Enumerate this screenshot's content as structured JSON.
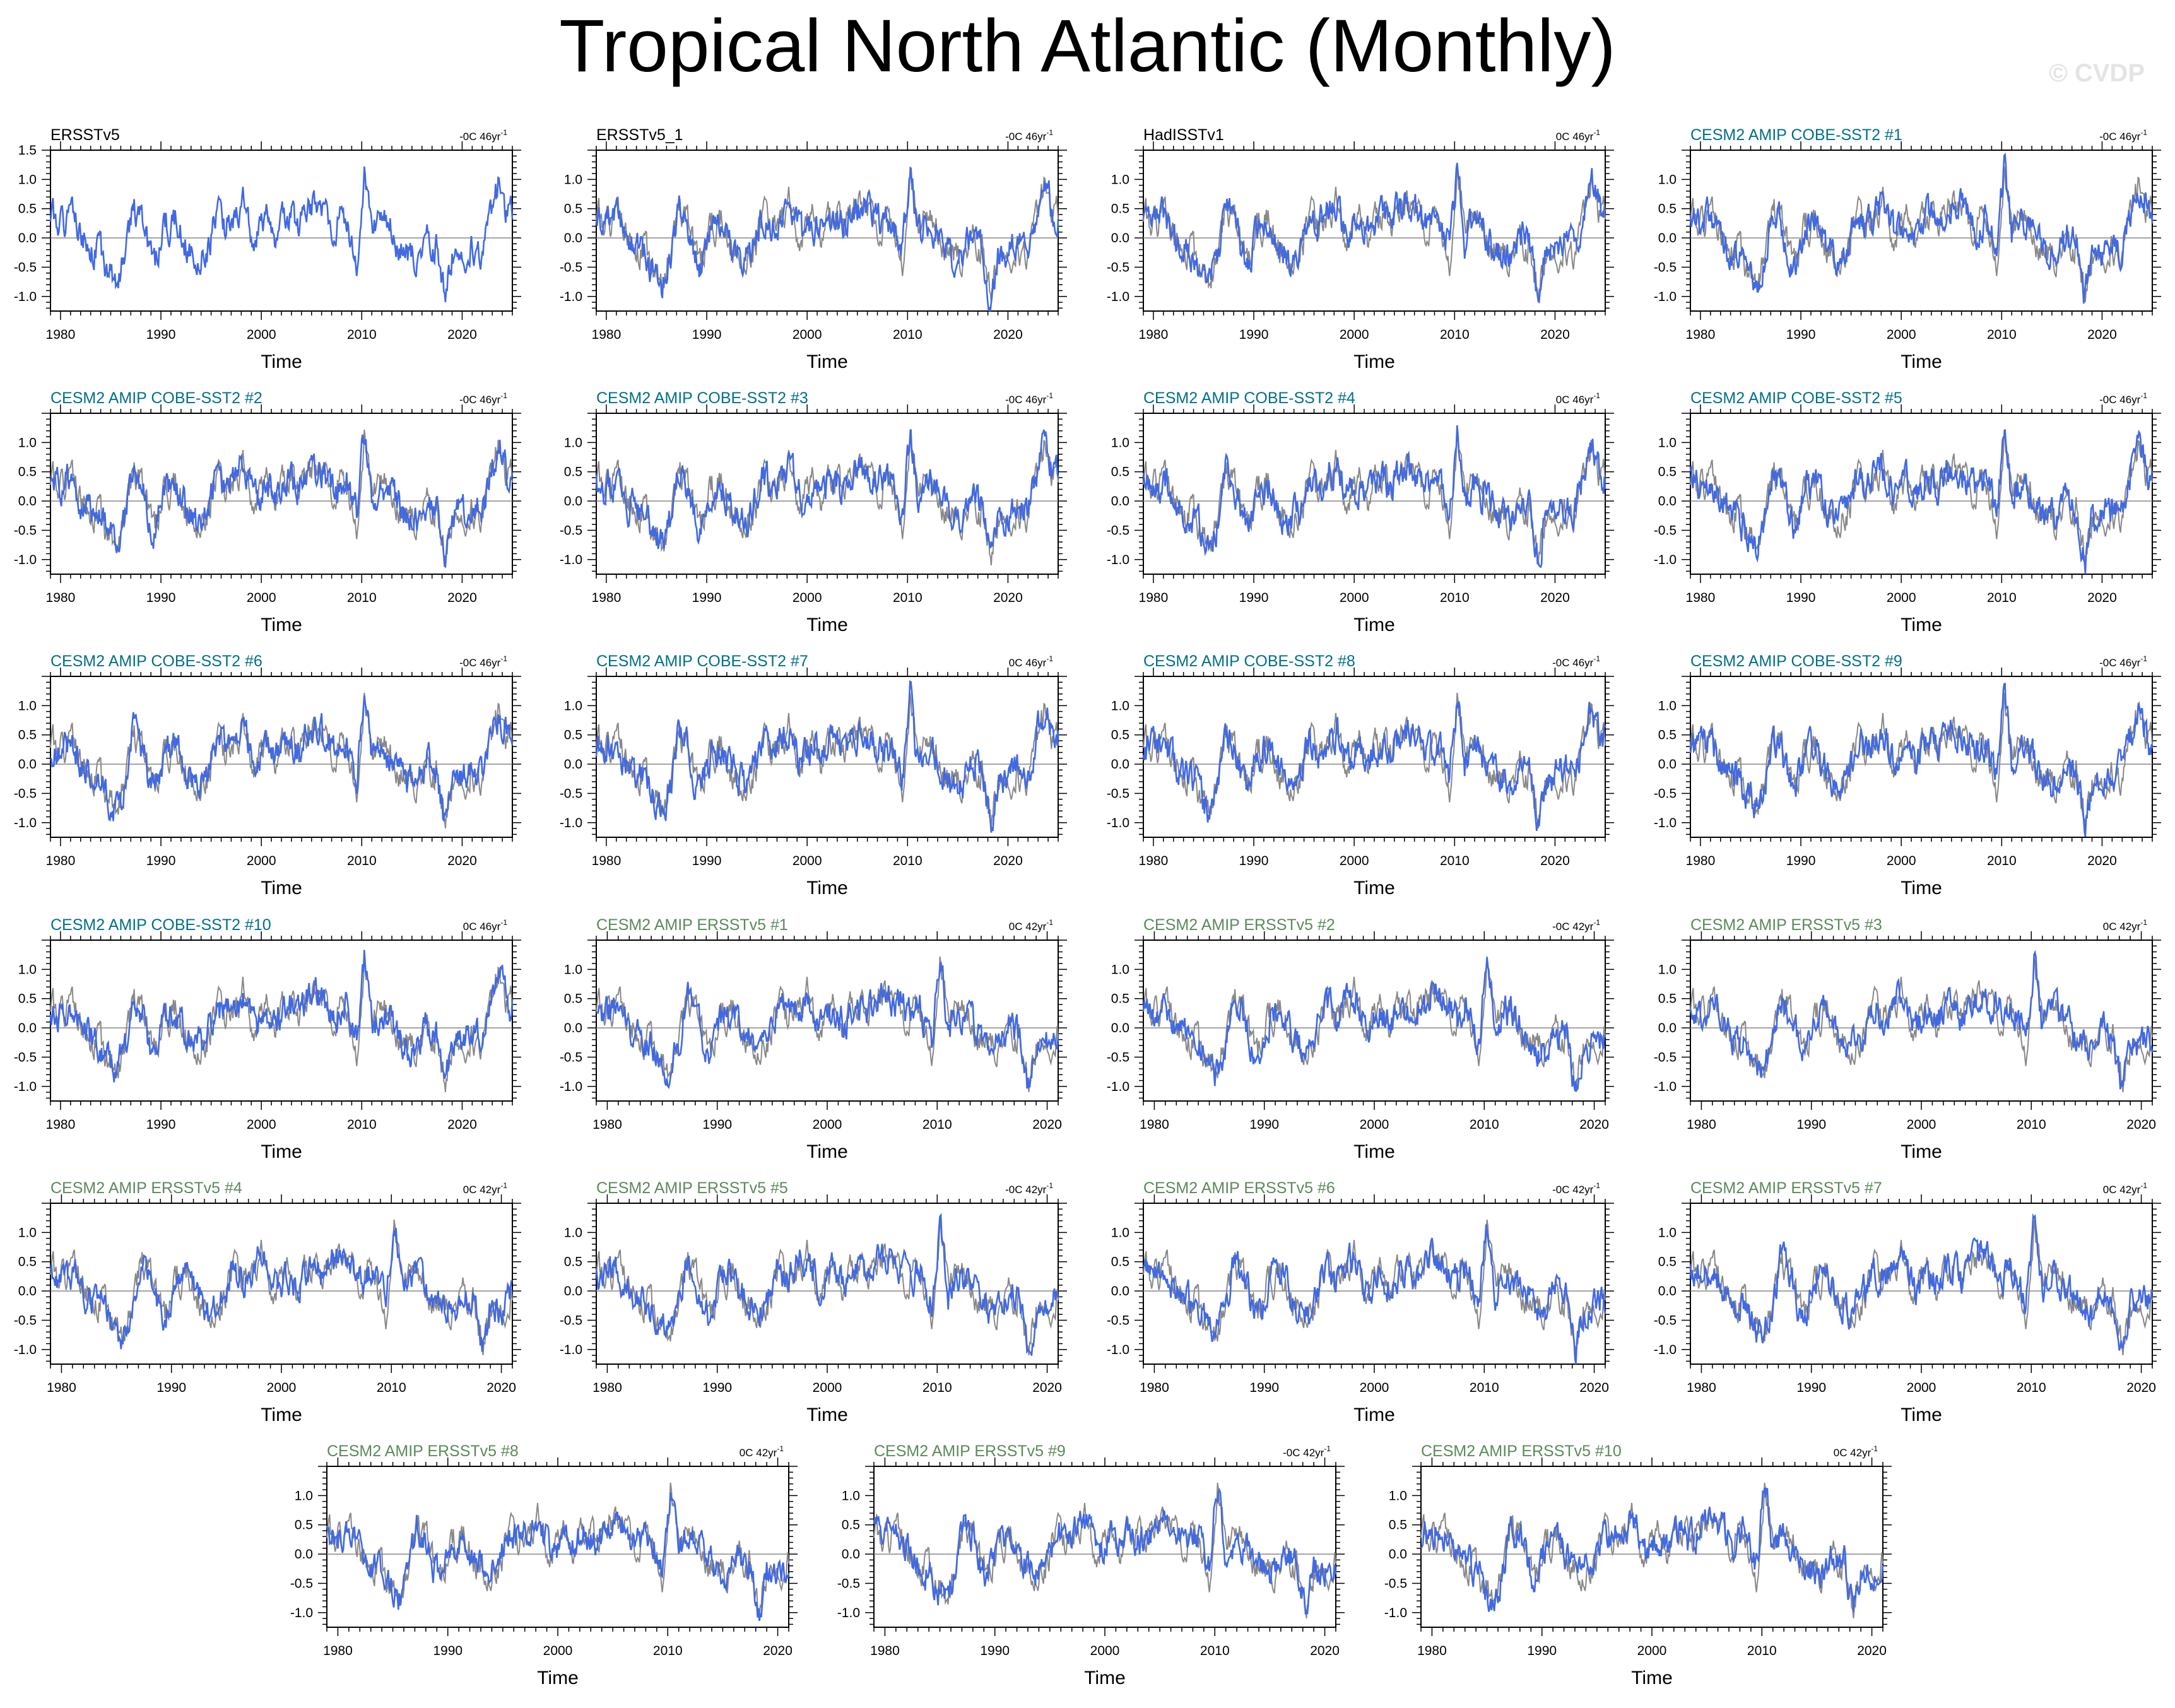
{
  "title": "Tropical North Atlantic (Monthly)",
  "watermark": "© CVDP",
  "colors": {
    "model_line": "#4169e1",
    "observation_line": "#888888",
    "zero_line": "#888888",
    "obs_title": "#000000",
    "cobe_title": "#00708a",
    "ersst_title": "#5b8a5b"
  },
  "chart_data": {
    "type": "line",
    "xlabel": "Time",
    "ylabel": "",
    "ylim": [
      -1.25,
      1.5
    ],
    "yticks": [
      "1.5",
      "1.0",
      "0.5",
      "0.0",
      "-0.5",
      "-1.0"
    ],
    "grid": false,
    "panels": [
      {
        "name": "ERSSTv5",
        "stat": "-0C 46yr",
        "stat_sup": "-1",
        "group": "obs",
        "xlim": [
          1979,
          2025
        ],
        "xticks": [
          "1980",
          "1990",
          "2000",
          "2010",
          "2020"
        ],
        "yticks": [
          "1.5",
          "1.0",
          "0.5",
          "0.0",
          "-0.5",
          "-1.0"
        ],
        "seed": 1
      },
      {
        "name": "ERSSTv5_1",
        "stat": "-0C 46yr",
        "stat_sup": "-1",
        "group": "obs",
        "xlim": [
          1979,
          2025
        ],
        "xticks": [
          "1980",
          "1990",
          "2000",
          "2010",
          "2020"
        ],
        "yticks": [
          "1.0",
          "0.5",
          "0.0",
          "-0.5",
          "-1.0"
        ],
        "seed": 2
      },
      {
        "name": "HadISSTv1",
        "stat": "0C 46yr",
        "stat_sup": "-1",
        "group": "obs",
        "xlim": [
          1979,
          2025
        ],
        "xticks": [
          "1980",
          "1990",
          "2000",
          "2010",
          "2020"
        ],
        "yticks": [
          "1.0",
          "0.5",
          "0.0",
          "-0.5",
          "-1.0"
        ],
        "seed": 3
      },
      {
        "name": "CESM2 AMIP COBE-SST2 #1",
        "stat": "-0C 46yr",
        "stat_sup": "-1",
        "group": "cobe",
        "xlim": [
          1979,
          2025
        ],
        "xticks": [
          "1980",
          "1990",
          "2000",
          "2010",
          "2020"
        ],
        "yticks": [
          "1.0",
          "0.5",
          "0.0",
          "-0.5",
          "-1.0"
        ],
        "seed": 4
      },
      {
        "name": "CESM2 AMIP COBE-SST2 #2",
        "stat": "-0C 46yr",
        "stat_sup": "-1",
        "group": "cobe",
        "xlim": [
          1979,
          2025
        ],
        "xticks": [
          "1980",
          "1990",
          "2000",
          "2010",
          "2020"
        ],
        "yticks": [
          "1.0",
          "0.5",
          "0.0",
          "-0.5",
          "-1.0"
        ],
        "seed": 5
      },
      {
        "name": "CESM2 AMIP COBE-SST2 #3",
        "stat": "-0C 46yr",
        "stat_sup": "-1",
        "group": "cobe",
        "xlim": [
          1979,
          2025
        ],
        "xticks": [
          "1980",
          "1990",
          "2000",
          "2010",
          "2020"
        ],
        "yticks": [
          "1.0",
          "0.5",
          "0.0",
          "-0.5",
          "-1.0"
        ],
        "seed": 6
      },
      {
        "name": "CESM2 AMIP COBE-SST2 #4",
        "stat": "0C 46yr",
        "stat_sup": "-1",
        "group": "cobe",
        "xlim": [
          1979,
          2025
        ],
        "xticks": [
          "1980",
          "1990",
          "2000",
          "2010",
          "2020"
        ],
        "yticks": [
          "1.0",
          "0.5",
          "0.0",
          "-0.5",
          "-1.0"
        ],
        "seed": 7
      },
      {
        "name": "CESM2 AMIP COBE-SST2 #5",
        "stat": "-0C 46yr",
        "stat_sup": "-1",
        "group": "cobe",
        "xlim": [
          1979,
          2025
        ],
        "xticks": [
          "1980",
          "1990",
          "2000",
          "2010",
          "2020"
        ],
        "yticks": [
          "1.0",
          "0.5",
          "0.0",
          "-0.5",
          "-1.0"
        ],
        "seed": 8
      },
      {
        "name": "CESM2 AMIP COBE-SST2 #6",
        "stat": "-0C 46yr",
        "stat_sup": "-1",
        "group": "cobe",
        "xlim": [
          1979,
          2025
        ],
        "xticks": [
          "1980",
          "1990",
          "2000",
          "2010",
          "2020"
        ],
        "yticks": [
          "1.0",
          "0.5",
          "0.0",
          "-0.5",
          "-1.0"
        ],
        "seed": 9
      },
      {
        "name": "CESM2 AMIP COBE-SST2 #7",
        "stat": "0C 46yr",
        "stat_sup": "-1",
        "group": "cobe",
        "xlim": [
          1979,
          2025
        ],
        "xticks": [
          "1980",
          "1990",
          "2000",
          "2010",
          "2020"
        ],
        "yticks": [
          "1.0",
          "0.5",
          "0.0",
          "-0.5",
          "-1.0"
        ],
        "seed": 10
      },
      {
        "name": "CESM2 AMIP COBE-SST2 #8",
        "stat": "-0C 46yr",
        "stat_sup": "-1",
        "group": "cobe",
        "xlim": [
          1979,
          2025
        ],
        "xticks": [
          "1980",
          "1990",
          "2000",
          "2010",
          "2020"
        ],
        "yticks": [
          "1.0",
          "0.5",
          "0.0",
          "-0.5",
          "-1.0"
        ],
        "seed": 11
      },
      {
        "name": "CESM2 AMIP COBE-SST2 #9",
        "stat": "-0C 46yr",
        "stat_sup": "-1",
        "group": "cobe",
        "xlim": [
          1979,
          2025
        ],
        "xticks": [
          "1980",
          "1990",
          "2000",
          "2010",
          "2020"
        ],
        "yticks": [
          "1.0",
          "0.5",
          "0.0",
          "-0.5",
          "-1.0"
        ],
        "seed": 12
      },
      {
        "name": "CESM2 AMIP COBE-SST2 #10",
        "stat": "0C 46yr",
        "stat_sup": "-1",
        "group": "cobe",
        "xlim": [
          1979,
          2025
        ],
        "xticks": [
          "1980",
          "1990",
          "2000",
          "2010",
          "2020"
        ],
        "yticks": [
          "1.0",
          "0.5",
          "0.0",
          "-0.5",
          "-1.0"
        ],
        "seed": 13
      },
      {
        "name": "CESM2 AMIP ERSSTv5 #1",
        "stat": "0C 42yr",
        "stat_sup": "-1",
        "group": "ersst",
        "xlim": [
          1979,
          2021
        ],
        "xticks": [
          "1980",
          "1990",
          "2000",
          "2010",
          "2020"
        ],
        "yticks": [
          "1.0",
          "0.5",
          "0.0",
          "-0.5",
          "-1.0"
        ],
        "seed": 14
      },
      {
        "name": "CESM2 AMIP ERSSTv5 #2",
        "stat": "-0C 42yr",
        "stat_sup": "-1",
        "group": "ersst",
        "xlim": [
          1979,
          2021
        ],
        "xticks": [
          "1980",
          "1990",
          "2000",
          "2010",
          "2020"
        ],
        "yticks": [
          "1.0",
          "0.5",
          "0.0",
          "-0.5",
          "-1.0"
        ],
        "seed": 15
      },
      {
        "name": "CESM2 AMIP ERSSTv5 #3",
        "stat": "0C 42yr",
        "stat_sup": "-1",
        "group": "ersst",
        "xlim": [
          1979,
          2021
        ],
        "xticks": [
          "1980",
          "1990",
          "2000",
          "2010",
          "2020"
        ],
        "yticks": [
          "1.0",
          "0.5",
          "0.0",
          "-0.5",
          "-1.0"
        ],
        "seed": 16
      },
      {
        "name": "CESM2 AMIP ERSSTv5 #4",
        "stat": "0C 42yr",
        "stat_sup": "-1",
        "group": "ersst",
        "xlim": [
          1979,
          2021
        ],
        "xticks": [
          "1980",
          "1990",
          "2000",
          "2010",
          "2020"
        ],
        "yticks": [
          "1.0",
          "0.5",
          "0.0",
          "-0.5",
          "-1.0"
        ],
        "seed": 17
      },
      {
        "name": "CESM2 AMIP ERSSTv5 #5",
        "stat": "-0C 42yr",
        "stat_sup": "-1",
        "group": "ersst",
        "xlim": [
          1979,
          2021
        ],
        "xticks": [
          "1980",
          "1990",
          "2000",
          "2010",
          "2020"
        ],
        "yticks": [
          "1.0",
          "0.5",
          "0.0",
          "-0.5",
          "-1.0"
        ],
        "seed": 18
      },
      {
        "name": "CESM2 AMIP ERSSTv5 #6",
        "stat": "-0C 42yr",
        "stat_sup": "-1",
        "group": "ersst",
        "xlim": [
          1979,
          2021
        ],
        "xticks": [
          "1980",
          "1990",
          "2000",
          "2010",
          "2020"
        ],
        "yticks": [
          "1.0",
          "0.5",
          "0.0",
          "-0.5",
          "-1.0"
        ],
        "seed": 19
      },
      {
        "name": "CESM2 AMIP ERSSTv5 #7",
        "stat": "0C 42yr",
        "stat_sup": "-1",
        "group": "ersst",
        "xlim": [
          1979,
          2021
        ],
        "xticks": [
          "1980",
          "1990",
          "2000",
          "2010",
          "2020"
        ],
        "yticks": [
          "1.0",
          "0.5",
          "0.0",
          "-0.5",
          "-1.0"
        ],
        "seed": 20
      },
      {
        "name": "CESM2 AMIP ERSSTv5 #8",
        "stat": "0C 42yr",
        "stat_sup": "-1",
        "group": "ersst",
        "xlim": [
          1979,
          2021
        ],
        "xticks": [
          "1980",
          "1990",
          "2000",
          "2010",
          "2020"
        ],
        "yticks": [
          "1.0",
          "0.5",
          "0.0",
          "-0.5",
          "-1.0"
        ],
        "seed": 21
      },
      {
        "name": "CESM2 AMIP ERSSTv5 #9",
        "stat": "-0C 42yr",
        "stat_sup": "-1",
        "group": "ersst",
        "xlim": [
          1979,
          2021
        ],
        "xticks": [
          "1980",
          "1990",
          "2000",
          "2010",
          "2020"
        ],
        "yticks": [
          "1.0",
          "0.5",
          "0.0",
          "-0.5",
          "-1.0"
        ],
        "seed": 22
      },
      {
        "name": "CESM2 AMIP ERSSTv5 #10",
        "stat": "0C 42yr",
        "stat_sup": "-1",
        "group": "ersst",
        "xlim": [
          1979,
          2021
        ],
        "xticks": [
          "1980",
          "1990",
          "2000",
          "2010",
          "2020"
        ],
        "yticks": [
          "1.0",
          "0.5",
          "0.0",
          "-0.5",
          "-1.0"
        ],
        "seed": 23
      }
    ],
    "anchor_series": {
      "x": [
        1979.0,
        1980.0,
        1981.0,
        1982.0,
        1983.0,
        1984.0,
        1985.5,
        1986.5,
        1987.2,
        1988.0,
        1989.3,
        1990.5,
        1991.5,
        1992.5,
        1993.5,
        1994.5,
        1995.6,
        1996.5,
        1997.5,
        1998.3,
        1999.5,
        2000.5,
        2001.5,
        2002.5,
        2003.5,
        2004.5,
        2005.5,
        2006.5,
        2007.5,
        2008.5,
        2009.5,
        2010.3,
        2011.0,
        2012.0,
        2013.0,
        2014.5,
        2015.5,
        2016.5,
        2017.5,
        2018.3,
        2019.0,
        2020.0,
        2021.0,
        2022.0,
        2023.0,
        2023.7,
        2024.5
      ],
      "y": [
        0.3,
        0.25,
        0.35,
        0.0,
        -0.15,
        -0.3,
        -0.8,
        -0.3,
        0.55,
        0.3,
        -0.5,
        0.2,
        0.3,
        -0.1,
        -0.35,
        -0.2,
        0.4,
        0.2,
        0.45,
        0.55,
        0.0,
        0.3,
        0.1,
        0.4,
        0.2,
        0.45,
        0.6,
        0.4,
        0.2,
        0.35,
        -0.25,
        1.25,
        0.0,
        0.3,
        0.1,
        -0.3,
        -0.35,
        0.05,
        -0.2,
        -1.05,
        -0.3,
        -0.25,
        -0.1,
        -0.15,
        0.55,
        0.95,
        0.4
      ]
    }
  }
}
